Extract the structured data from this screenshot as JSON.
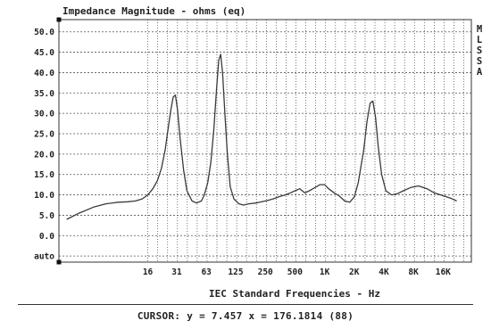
{
  "chart_data": {
    "type": "line",
    "title": "Impedance Magnitude - ohms (eq)",
    "xlabel": "IEC Standard Frequencies - Hz",
    "ylabel": "",
    "x_scale": "log",
    "xlim": [
      2,
      31000
    ],
    "ylim": [
      -6.5,
      53
    ],
    "x_ticks": [
      {
        "v": 16,
        "label": "16"
      },
      {
        "v": 31.5,
        "label": "31"
      },
      {
        "v": 63,
        "label": "63"
      },
      {
        "v": 125,
        "label": "125"
      },
      {
        "v": 250,
        "label": "250"
      },
      {
        "v": 500,
        "label": "500"
      },
      {
        "v": 1000,
        "label": "1K"
      },
      {
        "v": 2000,
        "label": "2K"
      },
      {
        "v": 4000,
        "label": "4K"
      },
      {
        "v": 8000,
        "label": "8K"
      },
      {
        "v": 16000,
        "label": "16K"
      }
    ],
    "y_ticks": [
      {
        "v": 50,
        "label": "50.0"
      },
      {
        "v": 45,
        "label": "45.0"
      },
      {
        "v": 40,
        "label": "40.0"
      },
      {
        "v": 35,
        "label": "35.0"
      },
      {
        "v": 30,
        "label": "30.0"
      },
      {
        "v": 25,
        "label": "25.0"
      },
      {
        "v": 20,
        "label": "20.0"
      },
      {
        "v": 15,
        "label": "15.0"
      },
      {
        "v": 10,
        "label": "10.0"
      },
      {
        "v": 5,
        "label": "5.0"
      },
      {
        "v": 0,
        "label": "0.0"
      },
      {
        "v": -5,
        "label": "auto"
      }
    ],
    "grid": true,
    "series": [
      {
        "x": [
          2.4,
          3.2,
          4.5,
          6,
          8,
          10,
          12,
          14,
          16,
          18,
          20,
          22,
          24,
          26,
          27.5,
          29,
          30.5,
          32,
          34,
          37,
          40,
          45,
          50,
          56,
          60,
          65,
          70,
          75,
          80,
          84,
          88,
          92,
          97,
          103,
          110,
          120,
          135,
          150,
          170,
          200,
          230,
          260,
          300,
          350,
          400,
          450,
          500,
          560,
          630,
          700,
          800,
          900,
          1000,
          1100,
          1250,
          1400,
          1600,
          1800,
          2000,
          2200,
          2500,
          2700,
          2900,
          3100,
          3300,
          3500,
          3800,
          4200,
          4800,
          5500,
          6300,
          7500,
          9000,
          11000,
          13000,
          16000,
          19000,
          22000
        ],
        "y": [
          4,
          5.5,
          7,
          7.8,
          8.2,
          8.3,
          8.5,
          9,
          10,
          11.5,
          13.5,
          16.5,
          21,
          27,
          31,
          34,
          34.5,
          31,
          24,
          16,
          11,
          8.5,
          8,
          8.5,
          10,
          13,
          18,
          26,
          36,
          43,
          44.5,
          40,
          30,
          20,
          12,
          9,
          7.8,
          7.5,
          7.8,
          8,
          8.3,
          8.6,
          9,
          9.6,
          10,
          10.5,
          11,
          11.5,
          10.5,
          11,
          11.8,
          12.5,
          12.5,
          11.5,
          10.5,
          9.8,
          8.5,
          8.2,
          9.5,
          13,
          21,
          28,
          32.5,
          33,
          29,
          22,
          15,
          11,
          10,
          10.3,
          11,
          11.8,
          12.2,
          11.5,
          10.5,
          9.8,
          9.2,
          8.5
        ]
      }
    ],
    "corner_markers": [
      {
        "x": 2,
        "y": 53
      },
      {
        "x": 2,
        "y": -6.5
      }
    ]
  },
  "side_label": "MLSSA",
  "cursor": {
    "label": "CURSOR:",
    "text": "y = 7.457  x = 176.1814 (88)"
  }
}
